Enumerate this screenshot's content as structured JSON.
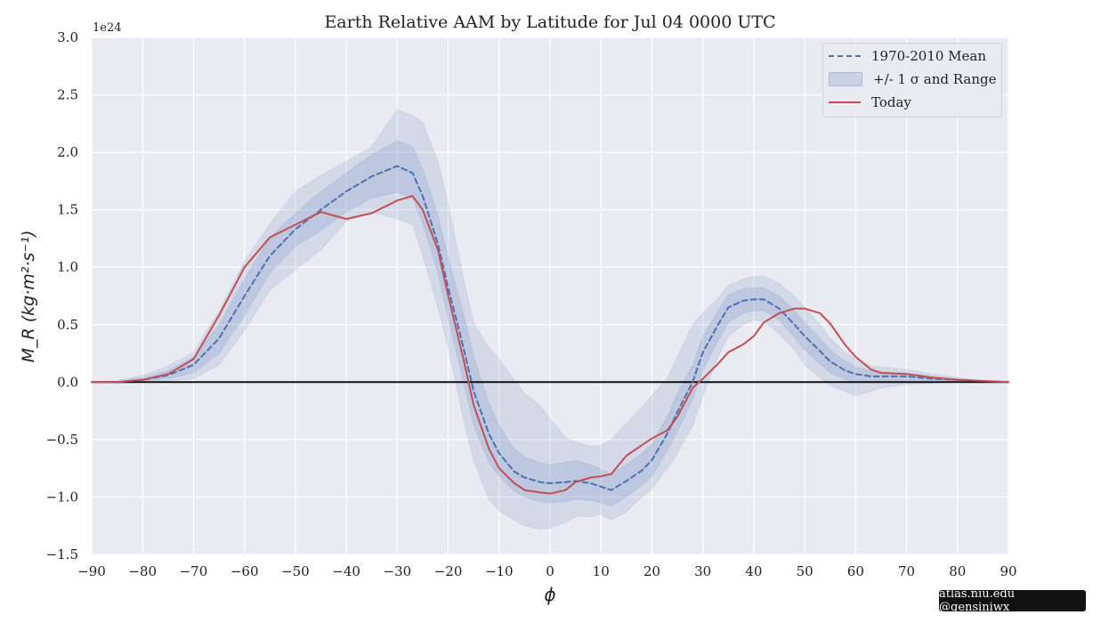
{
  "chart_data": {
    "type": "line",
    "title": "Earth Relative AAM by Latitude for Jul 04 0000 UTC",
    "xlabel": "ϕ",
    "ylabel": "M_R  (kg·m²·s⁻¹)",
    "y_exponent_label": "1e24",
    "xlim": [
      -90,
      90
    ],
    "ylim": [
      -1.5,
      3.0
    ],
    "xticks": [
      -90,
      -80,
      -70,
      -60,
      -50,
      -40,
      -30,
      -20,
      -10,
      0,
      10,
      20,
      30,
      40,
      50,
      60,
      70,
      80,
      90
    ],
    "yticks": [
      -1.5,
      -1.0,
      -0.5,
      0.0,
      0.5,
      1.0,
      1.5,
      2.0,
      2.5,
      3.0
    ],
    "xtick_labels": [
      "−90",
      "−80",
      "−70",
      "−60",
      "−50",
      "−40",
      "−30",
      "−20",
      "−10",
      "0",
      "10",
      "20",
      "30",
      "40",
      "50",
      "60",
      "70",
      "80",
      "90"
    ],
    "ytick_labels": [
      "−1.5",
      "−1.0",
      "−0.5",
      "0.0",
      "0.5",
      "1.0",
      "1.5",
      "2.0",
      "2.5",
      "3.0"
    ],
    "grid": true,
    "legend_position": "top-right",
    "x": [
      -90,
      -85,
      -80,
      -75,
      -70,
      -65,
      -60,
      -55,
      -50,
      -45,
      -40,
      -35,
      -30,
      -27,
      -25,
      -22,
      -20,
      -17,
      -15,
      -12,
      -10,
      -7,
      -5,
      -2,
      0,
      3,
      5,
      8,
      10,
      12,
      15,
      18,
      20,
      23,
      25,
      28,
      30,
      33,
      35,
      38,
      40,
      42,
      45,
      48,
      50,
      53,
      55,
      58,
      60,
      63,
      65,
      70,
      75,
      80,
      85,
      90
    ],
    "series": [
      {
        "name": "1970-2010 Mean",
        "style": "dashed",
        "color": "#4c72b0",
        "values": [
          0,
          0.0,
          0.02,
          0.06,
          0.15,
          0.38,
          0.75,
          1.1,
          1.33,
          1.5,
          1.66,
          1.79,
          1.88,
          1.82,
          1.62,
          1.2,
          0.82,
          0.3,
          -0.08,
          -0.45,
          -0.62,
          -0.78,
          -0.83,
          -0.87,
          -0.88,
          -0.87,
          -0.86,
          -0.88,
          -0.91,
          -0.94,
          -0.86,
          -0.77,
          -0.68,
          -0.45,
          -0.26,
          0.0,
          0.26,
          0.5,
          0.65,
          0.71,
          0.72,
          0.72,
          0.64,
          0.5,
          0.4,
          0.27,
          0.18,
          0.1,
          0.07,
          0.05,
          0.05,
          0.05,
          0.03,
          0.02,
          0.01,
          0
        ]
      },
      {
        "name": "Today",
        "style": "solid",
        "color": "#c44e52",
        "values": [
          0,
          0.0,
          0.02,
          0.07,
          0.2,
          0.58,
          1.0,
          1.26,
          1.37,
          1.48,
          1.42,
          1.47,
          1.58,
          1.62,
          1.5,
          1.15,
          0.75,
          0.2,
          -0.2,
          -0.58,
          -0.75,
          -0.88,
          -0.94,
          -0.96,
          -0.97,
          -0.94,
          -0.87,
          -0.83,
          -0.82,
          -0.8,
          -0.64,
          -0.55,
          -0.49,
          -0.42,
          -0.3,
          -0.05,
          0.03,
          0.16,
          0.26,
          0.33,
          0.4,
          0.52,
          0.6,
          0.64,
          0.64,
          0.6,
          0.51,
          0.32,
          0.22,
          0.11,
          0.08,
          0.07,
          0.04,
          0.02,
          0.01,
          0
        ]
      }
    ],
    "bands": [
      {
        "name": "+/- 1 σ and Range",
        "kind": "range",
        "lower": [
          0,
          -0.01,
          0.0,
          0.01,
          0.03,
          0.15,
          0.45,
          0.8,
          0.98,
          1.15,
          1.4,
          1.48,
          1.42,
          1.37,
          1.1,
          0.65,
          0.3,
          -0.32,
          -0.68,
          -1.02,
          -1.12,
          -1.2,
          -1.25,
          -1.28,
          -1.27,
          -1.22,
          -1.17,
          -1.17,
          -1.15,
          -1.2,
          -1.13,
          -1.0,
          -0.93,
          -0.75,
          -0.62,
          -0.38,
          -0.12,
          0.22,
          0.4,
          0.5,
          0.54,
          0.53,
          0.42,
          0.28,
          0.15,
          0.04,
          -0.03,
          -0.08,
          -0.12,
          -0.08,
          -0.05,
          -0.02,
          -0.01,
          0.0,
          0.0,
          0
        ],
        "upper": [
          0,
          0.01,
          0.06,
          0.14,
          0.26,
          0.62,
          1.05,
          1.38,
          1.66,
          1.8,
          1.92,
          2.05,
          2.37,
          2.32,
          2.26,
          1.92,
          1.55,
          0.9,
          0.52,
          0.3,
          0.2,
          0.02,
          -0.1,
          -0.2,
          -0.32,
          -0.48,
          -0.52,
          -0.56,
          -0.55,
          -0.5,
          -0.36,
          -0.22,
          -0.12,
          0.03,
          0.22,
          0.5,
          0.6,
          0.73,
          0.84,
          0.9,
          0.92,
          0.92,
          0.86,
          0.75,
          0.65,
          0.5,
          0.38,
          0.26,
          0.2,
          0.14,
          0.13,
          0.11,
          0.07,
          0.04,
          0.01,
          0
        ]
      },
      {
        "name": "+/- 1 σ",
        "kind": "sigma",
        "lower": [
          0,
          -0.005,
          0.01,
          0.03,
          0.08,
          0.25,
          0.58,
          0.95,
          1.18,
          1.32,
          1.48,
          1.6,
          1.65,
          1.6,
          1.38,
          0.95,
          0.55,
          0.0,
          -0.38,
          -0.7,
          -0.82,
          -0.95,
          -1.0,
          -1.04,
          -1.05,
          -1.04,
          -1.02,
          -1.03,
          -1.05,
          -1.08,
          -1.0,
          -0.9,
          -0.82,
          -0.6,
          -0.43,
          -0.15,
          0.1,
          0.36,
          0.52,
          0.6,
          0.62,
          0.62,
          0.54,
          0.39,
          0.28,
          0.16,
          0.08,
          0.02,
          0.0,
          0.0,
          0.01,
          0.01,
          0.01,
          0.0,
          0.0,
          0
        ],
        "upper": [
          0,
          0.005,
          0.04,
          0.1,
          0.22,
          0.5,
          0.9,
          1.26,
          1.47,
          1.66,
          1.82,
          1.98,
          2.1,
          2.05,
          1.86,
          1.45,
          1.08,
          0.6,
          0.22,
          -0.18,
          -0.38,
          -0.58,
          -0.65,
          -0.7,
          -0.72,
          -0.7,
          -0.68,
          -0.72,
          -0.76,
          -0.8,
          -0.72,
          -0.62,
          -0.54,
          -0.3,
          -0.1,
          0.15,
          0.4,
          0.62,
          0.76,
          0.81,
          0.82,
          0.82,
          0.75,
          0.62,
          0.52,
          0.38,
          0.28,
          0.18,
          0.13,
          0.1,
          0.09,
          0.08,
          0.05,
          0.03,
          0.01,
          0
        ]
      }
    ]
  },
  "legend": {
    "mean_label": "1970-2010 Mean",
    "band_label": "+/- 1 σ and Range",
    "today_label": "Today"
  },
  "credit": "atlas.niu.edu  @gensiniwx",
  "colors": {
    "plot_bg": "#eaeaf2",
    "grid": "#ffffff",
    "band": "#4c72b0",
    "mean": "#4c72b0",
    "today": "#c44e52",
    "zero_line": "#000000"
  }
}
